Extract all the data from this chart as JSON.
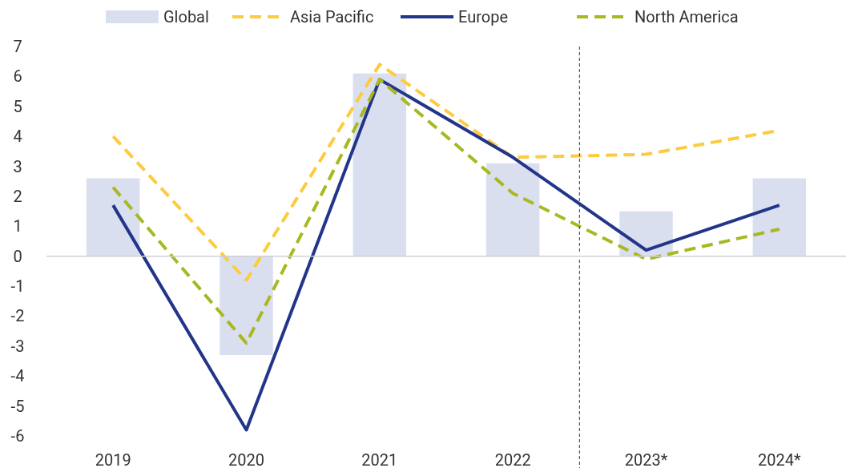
{
  "chart_data": {
    "type": "bar",
    "categories": [
      "2019",
      "2020",
      "2021",
      "2022",
      "2023*",
      "2024*"
    ],
    "series": [
      {
        "name": "Global",
        "color": "#dadff0",
        "values": [
          2.6,
          -3.3,
          6.1,
          3.1,
          1.5,
          2.6
        ]
      },
      {
        "name": "Asia Pacific",
        "type": "line",
        "color": "#fdcb3e",
        "line_style": "dashed",
        "values": [
          4.0,
          -0.8,
          6.4,
          3.3,
          3.4,
          4.2
        ]
      },
      {
        "name": "Europe",
        "type": "line",
        "color": "#223589",
        "line_style": "solid",
        "values": [
          1.7,
          -5.8,
          5.9,
          3.3,
          0.2,
          1.7
        ]
      },
      {
        "name": "North America",
        "type": "line",
        "color": "#a8b820",
        "line_style": "dashed",
        "values": [
          2.3,
          -2.9,
          5.9,
          2.1,
          -0.1,
          0.9
        ]
      }
    ],
    "ylim": [
      -6,
      7
    ],
    "yticks": [
      -6,
      -5,
      -4,
      -3,
      -2,
      -1,
      0,
      1,
      2,
      3,
      4,
      5,
      6,
      7
    ],
    "legend": "top"
  }
}
